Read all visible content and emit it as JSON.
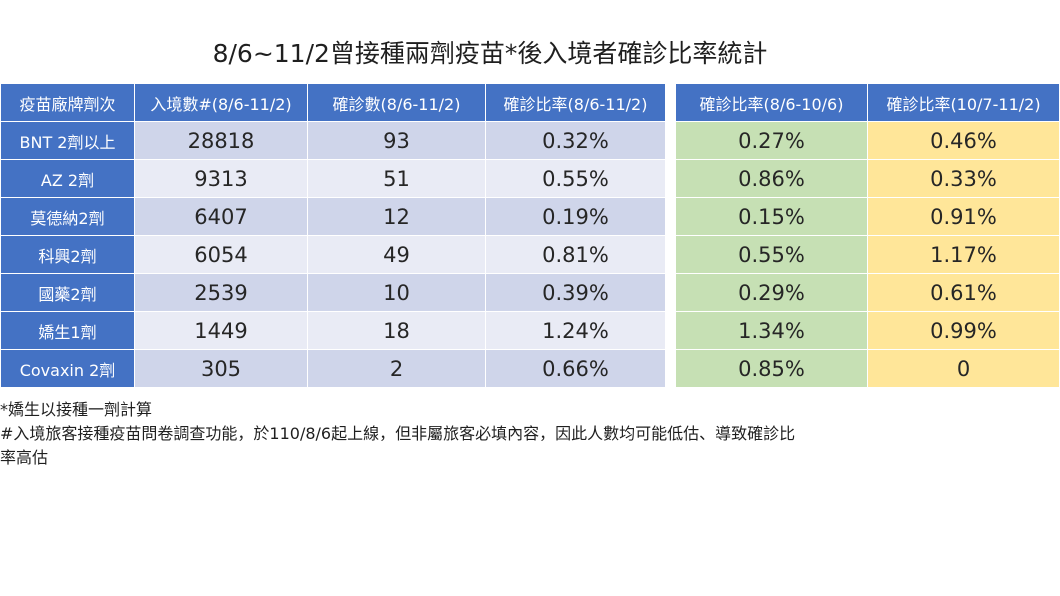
{
  "title": "8/6~11/2曾接種兩劑疫苗*後入境者確診比率統計",
  "headers": {
    "brand": "疫苗廠牌劑次",
    "arrivals": "入境數#(8/6-11/2)",
    "confirmed": "確診數(8/6-11/2)",
    "rate_all": "確診比率(8/6-11/2)",
    "rate_p1": "確診比率(8/6-10/6)",
    "rate_p2": "確診比率(10/7-11/2)"
  },
  "rows": [
    {
      "brand": "BNT 2劑以上",
      "arrivals": "28818",
      "confirmed": "93",
      "rate_all": "0.32%",
      "rate_p1": "0.27%",
      "rate_p2": "0.46%"
    },
    {
      "brand": "AZ 2劑",
      "arrivals": "9313",
      "confirmed": "51",
      "rate_all": "0.55%",
      "rate_p1": "0.86%",
      "rate_p2": "0.33%"
    },
    {
      "brand": "莫德納2劑",
      "arrivals": "6407",
      "confirmed": "12",
      "rate_all": "0.19%",
      "rate_p1": "0.15%",
      "rate_p2": "0.91%"
    },
    {
      "brand": "科興2劑",
      "arrivals": "6054",
      "confirmed": "49",
      "rate_all": "0.81%",
      "rate_p1": "0.55%",
      "rate_p2": "1.17%"
    },
    {
      "brand": "國藥2劑",
      "arrivals": "2539",
      "confirmed": "10",
      "rate_all": "0.39%",
      "rate_p1": "0.29%",
      "rate_p2": "0.61%"
    },
    {
      "brand": "嬌生1劑",
      "arrivals": "1449",
      "confirmed": "18",
      "rate_all": "1.24%",
      "rate_p1": "1.34%",
      "rate_p2": "0.99%"
    },
    {
      "brand": "Covaxin 2劑",
      "arrivals": "305",
      "confirmed": "2",
      "rate_all": "0.66%",
      "rate_p1": "0.85%",
      "rate_p2": "0"
    }
  ],
  "notes": [
    "*嬌生以接種一劑計算",
    "#入境旅客接種疫苗問卷調查功能，於110/8/6起上線，但非屬旅客必填內容，因此人數均可能低估、導致確診比",
    "率高估"
  ],
  "colors": {
    "header_blue": "#4472c4",
    "row_odd": "#cfd5ea",
    "row_even": "#e9ebf5",
    "green": "#c6e0b4",
    "yellow": "#ffe699"
  }
}
